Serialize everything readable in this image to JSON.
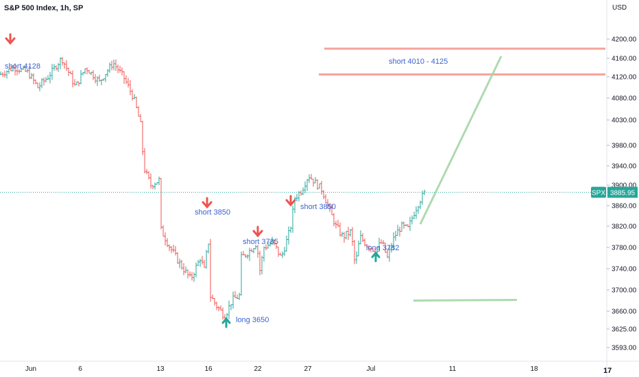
{
  "header": {
    "title": "S&P 500 Index, 1h, SP",
    "currency": "USD"
  },
  "price_tag": {
    "symbol": "SPX",
    "value": "3885.95"
  },
  "colors": {
    "up": "#26a69a",
    "down": "#ef5350",
    "resistance": "#f28b82",
    "projection": "#a5d6a7",
    "annotation": "#3a62d1"
  },
  "chart_data": {
    "type": "bar",
    "title": "S&P 500 Index, 1h, SP",
    "y_axis": {
      "label": "USD",
      "ticks": [
        4200,
        4160,
        4120,
        4080,
        4030,
        3980,
        3940,
        3900,
        3860,
        3820,
        3780,
        3740,
        3700,
        3660,
        3625,
        3593
      ],
      "range": [
        3575,
        4240
      ]
    },
    "x_axis": {
      "ticks": [
        "Jun",
        "6",
        "13",
        "16",
        "22",
        "27",
        "Jul",
        "11",
        "18"
      ]
    },
    "last_price": 3885.95,
    "resistance_lines": [
      4180,
      4125
    ],
    "support_line": 3680,
    "annotations": [
      {
        "text": "short  4128",
        "type": "short",
        "price": 4128
      },
      {
        "text": "short  3850",
        "type": "short",
        "price": 3850
      },
      {
        "text": "short  3785",
        "type": "short",
        "price": 3785
      },
      {
        "text": "short  3850",
        "type": "short",
        "price": 3850
      },
      {
        "text": "long  3782",
        "type": "long",
        "price": 3782
      },
      {
        "text": "long 3650",
        "type": "long",
        "price": 3650
      },
      {
        "text": "short  4010 - 4125",
        "type": "target",
        "price": 4150
      }
    ],
    "price_path": [
      [
        0,
        4125
      ],
      [
        20,
        4140
      ],
      [
        40,
        4130
      ],
      [
        55,
        4100
      ],
      [
        70,
        4120
      ],
      [
        90,
        4160
      ],
      [
        110,
        4100
      ],
      [
        125,
        4140
      ],
      [
        145,
        4110
      ],
      [
        165,
        4150
      ],
      [
        180,
        4120
      ],
      [
        195,
        4080
      ],
      [
        205,
        4020
      ],
      [
        210,
        3935
      ],
      [
        220,
        3900
      ],
      [
        232,
        3910
      ],
      [
        234,
        3815
      ],
      [
        248,
        3780
      ],
      [
        262,
        3750
      ],
      [
        278,
        3720
      ],
      [
        292,
        3760
      ],
      [
        300,
        3730
      ],
      [
        303,
        3840
      ],
      [
        306,
        3690
      ],
      [
        316,
        3670
      ],
      [
        328,
        3650
      ],
      [
        338,
        3680
      ],
      [
        350,
        3690
      ],
      [
        352,
        3760
      ],
      [
        365,
        3775
      ],
      [
        375,
        3790
      ],
      [
        378,
        3730
      ],
      [
        385,
        3780
      ],
      [
        398,
        3790
      ],
      [
        410,
        3760
      ],
      [
        420,
        3800
      ],
      [
        424,
        3820
      ],
      [
        430,
        3875
      ],
      [
        440,
        3890
      ],
      [
        450,
        3920
      ],
      [
        460,
        3905
      ],
      [
        470,
        3890
      ],
      [
        478,
        3860
      ],
      [
        490,
        3820
      ],
      [
        500,
        3800
      ],
      [
        512,
        3810
      ],
      [
        518,
        3745
      ],
      [
        525,
        3800
      ],
      [
        535,
        3785
      ],
      [
        547,
        3775
      ],
      [
        557,
        3790
      ],
      [
        565,
        3760
      ],
      [
        575,
        3800
      ],
      [
        585,
        3820
      ],
      [
        595,
        3815
      ],
      [
        605,
        3850
      ],
      [
        612,
        3870
      ],
      [
        620,
        3886
      ]
    ]
  }
}
